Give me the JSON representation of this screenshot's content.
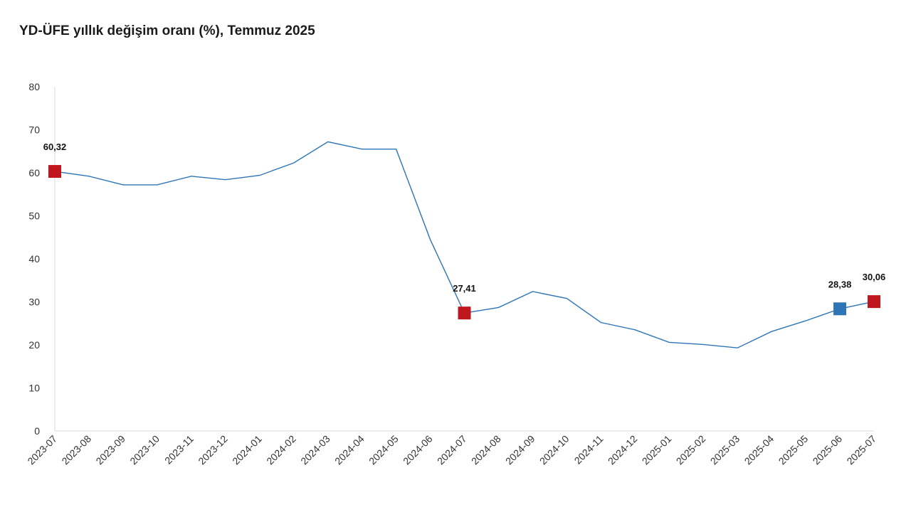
{
  "chart_data": {
    "type": "line",
    "title": "YD-ÜFE yıllık değişim oranı (%), Temmuz 2025",
    "xlabel": "",
    "ylabel": "",
    "ylim": [
      0,
      80
    ],
    "yticks": [
      "0",
      "10",
      "20",
      "30",
      "40",
      "50",
      "60",
      "70",
      "80"
    ],
    "grid": false,
    "categories": [
      "2023-07",
      "2023-08",
      "2023-09",
      "2023-10",
      "2023-11",
      "2023-12",
      "2024-01",
      "2024-02",
      "2024-03",
      "2024-04",
      "2024-05",
      "2024-06",
      "2024-07",
      "2024-08",
      "2024-09",
      "2024-10",
      "2024-11",
      "2024-12",
      "2025-01",
      "2025-02",
      "2025-03",
      "2025-04",
      "2025-05",
      "2025-06",
      "2025-07"
    ],
    "series": [
      {
        "values": [
          60.32,
          59.2,
          57.2,
          57.2,
          59.2,
          58.4,
          59.4,
          62.3,
          67.2,
          65.5,
          65.5,
          44.5,
          27.41,
          28.7,
          32.4,
          30.8,
          25.2,
          23.5,
          20.6,
          20.1,
          19.3,
          23.1,
          25.6,
          28.38,
          30.06
        ],
        "color": "#2e75b6"
      }
    ],
    "highlights": [
      {
        "index": 0,
        "label": "60,32",
        "color": "#c0161d"
      },
      {
        "index": 12,
        "label": "27,41",
        "color": "#c0161d"
      },
      {
        "index": 23,
        "label": "28,38",
        "color": "#2e75b6"
      },
      {
        "index": 24,
        "label": "30,06",
        "color": "#c0161d"
      }
    ]
  }
}
